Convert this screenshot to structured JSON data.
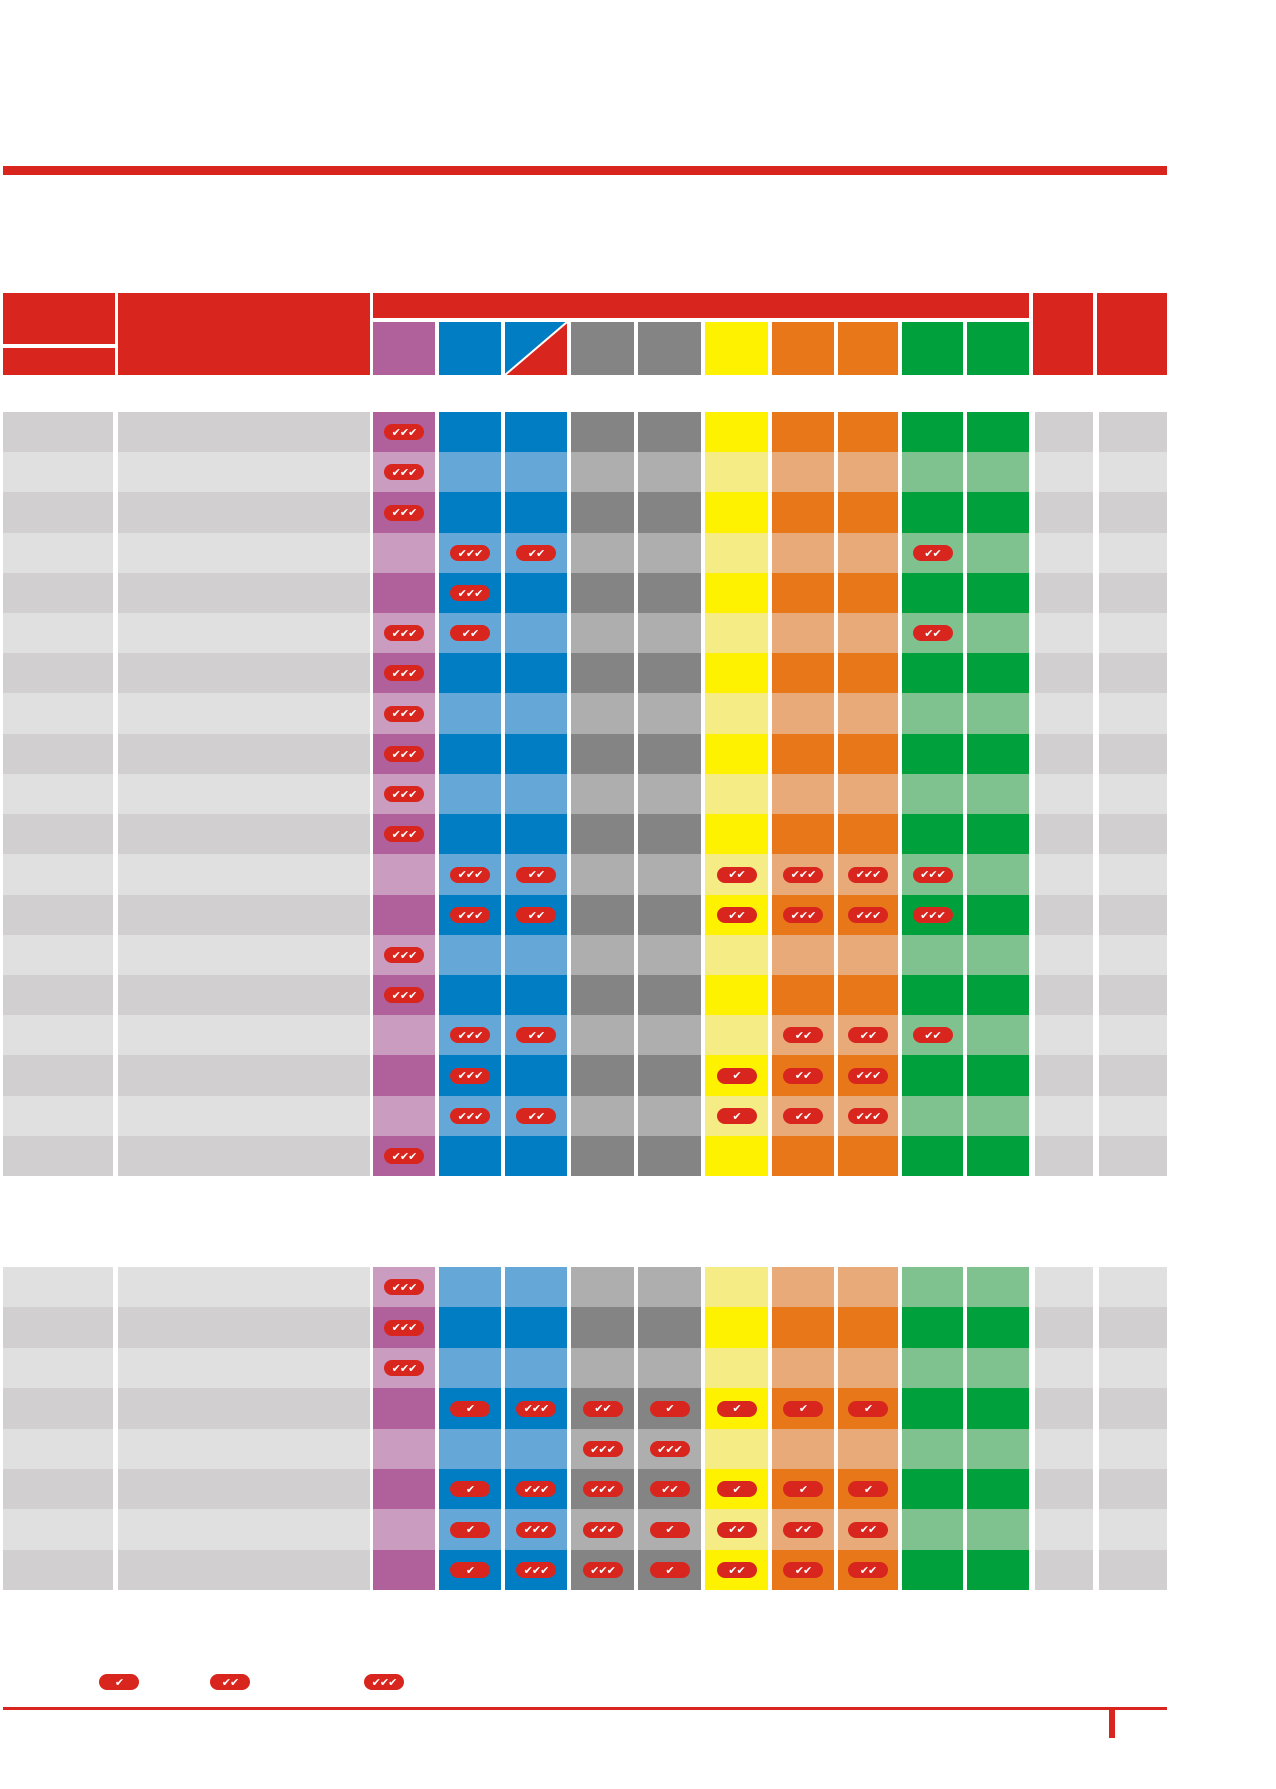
{
  "palette": {
    "red": "#d8251e",
    "label_dark": "#d1cfd0",
    "label_light": "#e0e0e0",
    "columns": [
      {
        "dark": "#b0609a",
        "light": "#c99cc0"
      },
      {
        "dark": "#007dc3",
        "light": "#65a8d8"
      },
      {
        "dark": "#007dc3",
        "light": "#65a8d8"
      },
      {
        "dark": "#848484",
        "light": "#aeaeae"
      },
      {
        "dark": "#848484",
        "light": "#aeaeae"
      },
      {
        "dark": "#fff200",
        "light": "#f5ec85"
      },
      {
        "dark": "#e87719",
        "light": "#e9aa79"
      },
      {
        "dark": "#e87719",
        "light": "#e9aa79"
      },
      {
        "dark": "#00a03c",
        "light": "#80c190"
      },
      {
        "dark": "#00a03c",
        "light": "#80c190"
      }
    ],
    "header_columns": [
      "#b0609a",
      "#007dc3",
      "split",
      "#848484",
      "#848484",
      "#fff200",
      "#e87719",
      "#e87719",
      "#00a03c",
      "#00a03c"
    ]
  },
  "icons": {
    "check1": "✔",
    "check2": "✔✔",
    "check3": "✔✔✔",
    "names": {
      "1": "single-check-badge-icon",
      "2": "double-check-badge-icon",
      "3": "triple-check-badge-icon"
    }
  },
  "section1": {
    "rows": [
      [
        3,
        0,
        0,
        0,
        0,
        0,
        0,
        0,
        0,
        0
      ],
      [
        3,
        0,
        0,
        0,
        0,
        0,
        0,
        0,
        0,
        0
      ],
      [
        3,
        0,
        0,
        0,
        0,
        0,
        0,
        0,
        0,
        0
      ],
      [
        0,
        3,
        2,
        0,
        0,
        0,
        0,
        0,
        2,
        0
      ],
      [
        0,
        3,
        0,
        0,
        0,
        0,
        0,
        0,
        0,
        0
      ],
      [
        3,
        2,
        0,
        0,
        0,
        0,
        0,
        0,
        2,
        0
      ],
      [
        3,
        0,
        0,
        0,
        0,
        0,
        0,
        0,
        0,
        0
      ],
      [
        3,
        0,
        0,
        0,
        0,
        0,
        0,
        0,
        0,
        0
      ],
      [
        3,
        0,
        0,
        0,
        0,
        0,
        0,
        0,
        0,
        0
      ],
      [
        3,
        0,
        0,
        0,
        0,
        0,
        0,
        0,
        0,
        0
      ],
      [
        3,
        0,
        0,
        0,
        0,
        0,
        0,
        0,
        0,
        0
      ],
      [
        0,
        3,
        2,
        0,
        0,
        2,
        3,
        3,
        3,
        0
      ],
      [
        0,
        3,
        2,
        0,
        0,
        2,
        3,
        3,
        3,
        0
      ],
      [
        3,
        0,
        0,
        0,
        0,
        0,
        0,
        0,
        0,
        0
      ],
      [
        3,
        0,
        0,
        0,
        0,
        0,
        0,
        0,
        0,
        0
      ],
      [
        0,
        3,
        2,
        0,
        0,
        0,
        2,
        2,
        2,
        0
      ],
      [
        0,
        3,
        0,
        0,
        0,
        1,
        2,
        3,
        0,
        0
      ],
      [
        0,
        3,
        2,
        0,
        0,
        1,
        2,
        3,
        0,
        0
      ],
      [
        3,
        0,
        0,
        0,
        0,
        0,
        0,
        0,
        0,
        0
      ]
    ]
  },
  "section2": {
    "rows": [
      [
        3,
        0,
        0,
        0,
        0,
        0,
        0,
        0,
        0,
        0
      ],
      [
        3,
        0,
        0,
        0,
        0,
        0,
        0,
        0,
        0,
        0
      ],
      [
        3,
        0,
        0,
        0,
        0,
        0,
        0,
        0,
        0,
        0
      ],
      [
        0,
        1,
        3,
        2,
        1,
        1,
        1,
        1,
        0,
        0
      ],
      [
        0,
        0,
        0,
        3,
        3,
        0,
        0,
        0,
        0,
        0
      ],
      [
        0,
        1,
        3,
        3,
        2,
        1,
        1,
        1,
        0,
        0
      ],
      [
        0,
        1,
        3,
        3,
        1,
        2,
        2,
        2,
        0,
        0
      ],
      [
        0,
        1,
        3,
        3,
        1,
        2,
        2,
        2,
        0,
        0
      ]
    ]
  },
  "legend": [
    1,
    2,
    3
  ]
}
